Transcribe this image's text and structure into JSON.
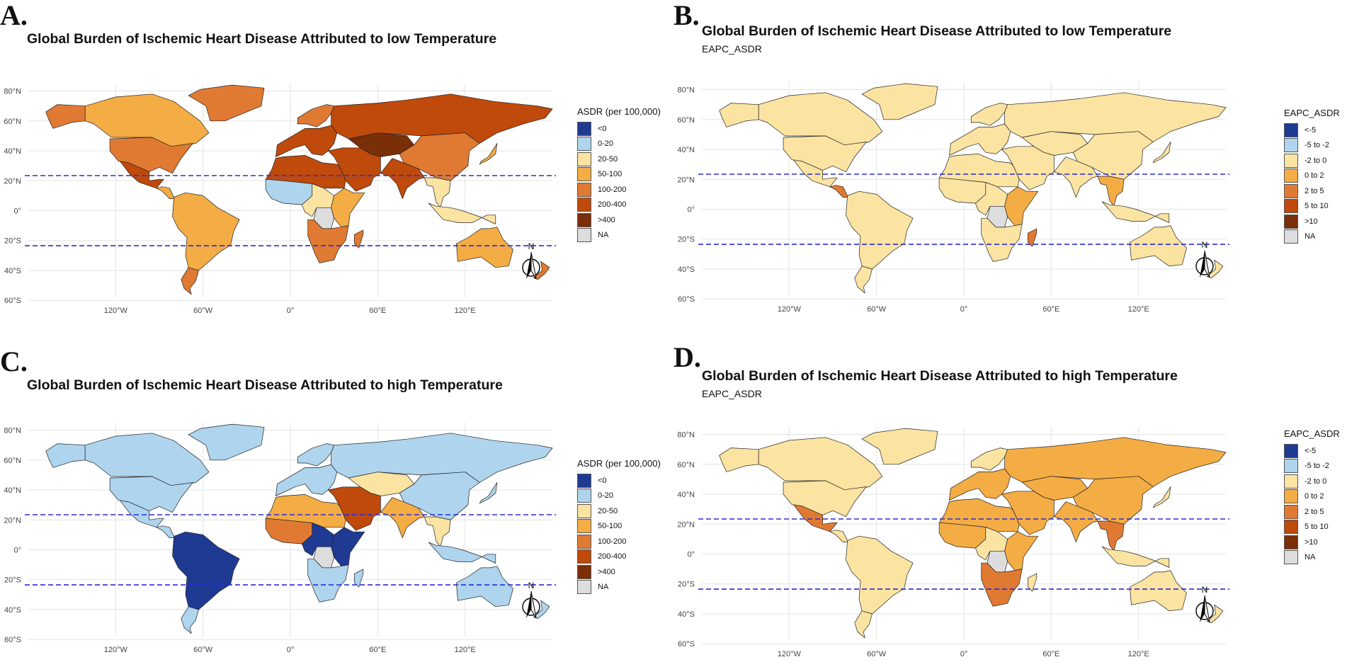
{
  "panels": [
    {
      "letter": "A.",
      "title": "Global Burden of Ischemic Heart Disease Attributed to low Temperature",
      "subtitle": "",
      "legend": {
        "title": "ASDR (per 100,000)",
        "items": [
          {
            "label": "<0",
            "color": "#1f3a93"
          },
          {
            "label": "0-20",
            "color": "#aed4ee"
          },
          {
            "label": "20-50",
            "color": "#fbe3a2"
          },
          {
            "label": "50-100",
            "color": "#f4ac45"
          },
          {
            "label": "100-200",
            "color": "#e07a33"
          },
          {
            "label": "200-400",
            "color": "#bf4a0c"
          },
          {
            "label": ">400",
            "color": "#7a2f08"
          },
          {
            "label": "NA",
            "color": "#dddddd"
          }
        ]
      },
      "regions": {
        "north_america": "#e07a33",
        "alaska": "#e07a33",
        "greenland": "#e07a33",
        "canada": "#f4ac45",
        "mexico": "#bf4a0c",
        "central_america": "#f4ac45",
        "south_america": "#f4ac45",
        "patagonia": "#e07a33",
        "europe": "#bf4a0c",
        "scandinavia": "#e07a33",
        "russia": "#bf4a0c",
        "central_asia": "#7a2f08",
        "north_africa": "#bf4a0c",
        "west_africa": "#aed4ee",
        "central_africa": "#fbe3a2",
        "drc": "#dddddd",
        "east_africa": "#f4ac45",
        "southern_africa": "#e07a33",
        "madagascar": "#e07a33",
        "middle_east": "#bf4a0c",
        "india": "#bf4a0c",
        "china": "#e07a33",
        "southeast_asia": "#fbe3a2",
        "japan": "#f4ac45",
        "indonesia": "#fbe3a2",
        "australia": "#f4ac45",
        "new_zealand": "#e07a33"
      }
    },
    {
      "letter": "B.",
      "title": "Global Burden of Ischemic Heart Disease Attributed to low Temperature",
      "subtitle": "EAPC_ASDR",
      "legend": {
        "title": "EAPC_ASDR",
        "items": [
          {
            "label": "<-5",
            "color": "#1f3a93"
          },
          {
            "label": "-5 to -2",
            "color": "#aed4ee"
          },
          {
            "label": "-2 to 0",
            "color": "#fbe3a2"
          },
          {
            "label": "0 to 2",
            "color": "#f4ac45"
          },
          {
            "label": "2 to 5",
            "color": "#e07a33"
          },
          {
            "label": "5 to 10",
            "color": "#bf4a0c"
          },
          {
            "label": ">10",
            "color": "#7a2f08"
          },
          {
            "label": "NA",
            "color": "#dddddd"
          }
        ]
      },
      "regions": {
        "north_america": "#fbe3a2",
        "alaska": "#fbe3a2",
        "greenland": "#fbe3a2",
        "canada": "#fbe3a2",
        "mexico": "#fbe3a2",
        "central_america": "#e07a33",
        "south_america": "#fbe3a2",
        "patagonia": "#fbe3a2",
        "europe": "#fbe3a2",
        "scandinavia": "#fbe3a2",
        "russia": "#fbe3a2",
        "central_asia": "#fbe3a2",
        "north_africa": "#fbe3a2",
        "west_africa": "#fbe3a2",
        "central_africa": "#fbe3a2",
        "drc": "#dddddd",
        "east_africa": "#f4ac45",
        "southern_africa": "#fbe3a2",
        "madagascar": "#e07a33",
        "middle_east": "#fbe3a2",
        "india": "#fbe3a2",
        "china": "#fbe3a2",
        "southeast_asia": "#f4ac45",
        "japan": "#fbe3a2",
        "indonesia": "#fbe3a2",
        "australia": "#fbe3a2",
        "new_zealand": "#fbe3a2"
      }
    },
    {
      "letter": "C.",
      "title": "Global Burden of Ischemic Heart Disease Attributed to high Temperature",
      "subtitle": "",
      "legend": {
        "title": "ASDR (per 100,000)",
        "items": [
          {
            "label": "<0",
            "color": "#1f3a93"
          },
          {
            "label": "0-20",
            "color": "#aed4ee"
          },
          {
            "label": "20-50",
            "color": "#fbe3a2"
          },
          {
            "label": "50-100",
            "color": "#f4ac45"
          },
          {
            "label": "100-200",
            "color": "#e07a33"
          },
          {
            "label": "200-400",
            "color": "#bf4a0c"
          },
          {
            "label": ">400",
            "color": "#7a2f08"
          },
          {
            "label": "NA",
            "color": "#dddddd"
          }
        ]
      },
      "regions": {
        "north_america": "#aed4ee",
        "alaska": "#aed4ee",
        "greenland": "#aed4ee",
        "canada": "#aed4ee",
        "mexico": "#aed4ee",
        "central_america": "#aed4ee",
        "south_america": "#1f3a93",
        "patagonia": "#aed4ee",
        "europe": "#aed4ee",
        "scandinavia": "#aed4ee",
        "russia": "#aed4ee",
        "central_asia": "#fbe3a2",
        "north_africa": "#f4ac45",
        "west_africa": "#e07a33",
        "central_africa": "#1f3a93",
        "drc": "#dddddd",
        "east_africa": "#1f3a93",
        "southern_africa": "#aed4ee",
        "madagascar": "#aed4ee",
        "middle_east": "#bf4a0c",
        "india": "#f4ac45",
        "china": "#aed4ee",
        "southeast_asia": "#fbe3a2",
        "japan": "#aed4ee",
        "indonesia": "#aed4ee",
        "australia": "#aed4ee",
        "new_zealand": "#aed4ee"
      }
    },
    {
      "letter": "D.",
      "title": "Global Burden of Ischemic Heart Disease Attributed to high Temperature",
      "subtitle": "EAPC_ASDR",
      "legend": {
        "title": "EAPC_ASDR",
        "items": [
          {
            "label": "<-5",
            "color": "#1f3a93"
          },
          {
            "label": "-5 to -2",
            "color": "#aed4ee"
          },
          {
            "label": "-2 to 0",
            "color": "#fbe3a2"
          },
          {
            "label": "0 to 2",
            "color": "#f4ac45"
          },
          {
            "label": "2 to 5",
            "color": "#e07a33"
          },
          {
            "label": "5 to 10",
            "color": "#bf4a0c"
          },
          {
            "label": ">10",
            "color": "#7a2f08"
          },
          {
            "label": "NA",
            "color": "#dddddd"
          }
        ]
      },
      "regions": {
        "north_america": "#fbe3a2",
        "alaska": "#fbe3a2",
        "greenland": "#fbe3a2",
        "canada": "#fbe3a2",
        "mexico": "#e07a33",
        "central_america": "#fbe3a2",
        "south_america": "#fbe3a2",
        "patagonia": "#fbe3a2",
        "europe": "#f4ac45",
        "scandinavia": "#fbe3a2",
        "russia": "#f4ac45",
        "central_asia": "#f4ac45",
        "north_africa": "#f4ac45",
        "west_africa": "#f4ac45",
        "central_africa": "#fbe3a2",
        "drc": "#dddddd",
        "east_africa": "#f4ac45",
        "southern_africa": "#e07a33",
        "madagascar": "#fbe3a2",
        "middle_east": "#f4ac45",
        "india": "#f4ac45",
        "china": "#f4ac45",
        "southeast_asia": "#e07a33",
        "japan": "#fbe3a2",
        "indonesia": "#fbe3a2",
        "australia": "#fbe3a2",
        "new_zealand": "#fbe3a2"
      }
    }
  ],
  "axes": {
    "lat_ticks": [
      "80°N",
      "60°N",
      "40°N",
      "20°N",
      "0°",
      "20°S",
      "40°S",
      "60°S"
    ],
    "lon_ticks": [
      "120°W",
      "60°W",
      "0°",
      "60°E",
      "120°E"
    ]
  },
  "north_arrow_label": "N",
  "colors": {
    "tropic_line": "#2b2bd6",
    "grid": "#e3e3e3",
    "border": "#222222"
  }
}
